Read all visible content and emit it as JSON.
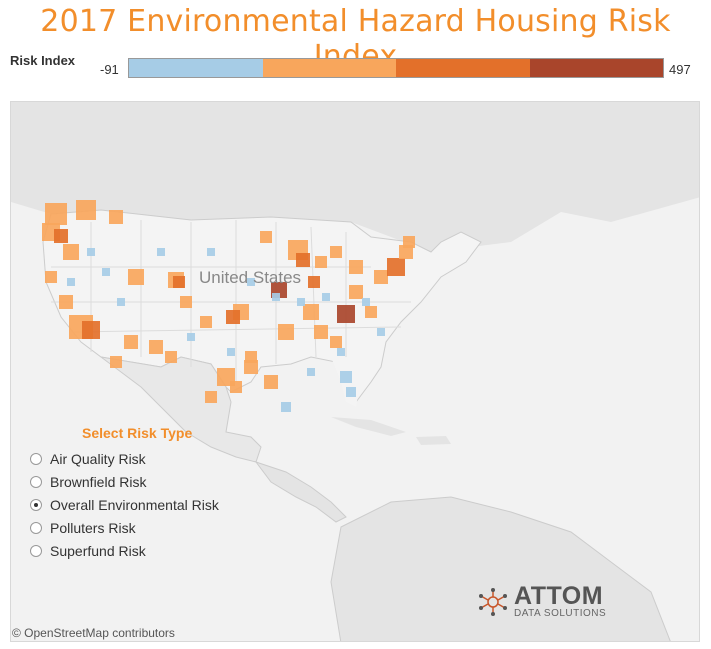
{
  "title": "2017 Environmental Hazard Housing Risk Index",
  "legend": {
    "label": "Risk Index",
    "min": "-91",
    "max": "497",
    "colors": [
      "#a6cce6",
      "#f8a65c",
      "#e3702a",
      "#a9452b"
    ]
  },
  "map": {
    "country_label": "United States",
    "credit": "© OpenStreetMap contributors",
    "marker_colors": {
      "low": "#a6cce6",
      "mid": "#f8a65c",
      "high": "#e3702a",
      "top": "#a9452b"
    }
  },
  "risk_type": {
    "title": "Select Risk Type",
    "options": [
      {
        "label": "Air Quality Risk",
        "selected": false
      },
      {
        "label": "Brownfield Risk",
        "selected": false
      },
      {
        "label": "Overall Environmental Risk",
        "selected": true
      },
      {
        "label": "Polluters Risk",
        "selected": false
      },
      {
        "label": "Superfund Risk",
        "selected": false
      }
    ]
  },
  "brand": {
    "name": "ATTOM",
    "subtitle": "DATA SOLUTIONS",
    "icon": "network-icon"
  }
}
